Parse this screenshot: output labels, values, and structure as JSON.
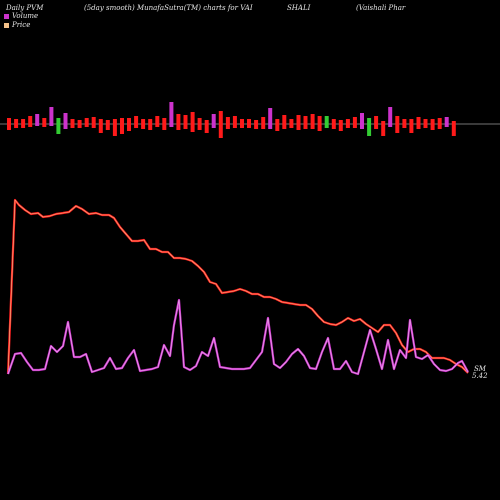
{
  "header": {
    "left": "Daily PVM",
    "center": "(5day smooth) MunafaSutra(TM) charts for VAI",
    "symbol": "SHALI",
    "right": "(Vaishali  Phar"
  },
  "legend": [
    {
      "label": "Volume",
      "color": "#cc33cc"
    },
    {
      "label": "Price",
      "color": "#f4c28a"
    }
  ],
  "chart_data": {
    "type": "line",
    "end_labels": [
      "SM",
      "5.42"
    ],
    "volume_bars": [
      {
        "up": 6,
        "down": 6,
        "color": "#ff1a1a"
      },
      {
        "up": 5,
        "down": 4,
        "color": "#ff1a1a"
      },
      {
        "up": 5,
        "down": 4,
        "color": "#ff1a1a"
      },
      {
        "up": 8,
        "down": 3,
        "color": "#ff1a1a"
      },
      {
        "up": 10,
        "down": 2,
        "color": "#cc33cc"
      },
      {
        "up": 6,
        "down": 3,
        "color": "#ff1a1a"
      },
      {
        "up": 17,
        "down": 2,
        "color": "#cc33cc"
      },
      {
        "up": 6,
        "down": 10,
        "color": "#33cc33"
      },
      {
        "up": 11,
        "down": 5,
        "color": "#cc33cc"
      },
      {
        "up": 5,
        "down": 4,
        "color": "#ff1a1a"
      },
      {
        "up": 4,
        "down": 4,
        "color": "#ff1a1a"
      },
      {
        "up": 6,
        "down": 3,
        "color": "#ff1a1a"
      },
      {
        "up": 7,
        "down": 4,
        "color": "#ff1a1a"
      },
      {
        "up": 5,
        "down": 9,
        "color": "#ff1a1a"
      },
      {
        "up": 4,
        "down": 6,
        "color": "#ff1a1a"
      },
      {
        "up": 5,
        "down": 12,
        "color": "#ff1a1a"
      },
      {
        "up": 6,
        "down": 10,
        "color": "#ff1a1a"
      },
      {
        "up": 6,
        "down": 7,
        "color": "#ff1a1a"
      },
      {
        "up": 8,
        "down": 4,
        "color": "#ff1a1a"
      },
      {
        "up": 5,
        "down": 5,
        "color": "#ff1a1a"
      },
      {
        "up": 5,
        "down": 6,
        "color": "#ff1a1a"
      },
      {
        "up": 8,
        "down": 3,
        "color": "#ff1a1a"
      },
      {
        "up": 6,
        "down": 6,
        "color": "#ff1a1a"
      },
      {
        "up": 22,
        "down": 3,
        "color": "#cc33cc"
      },
      {
        "up": 10,
        "down": 6,
        "color": "#ff1a1a"
      },
      {
        "up": 9,
        "down": 5,
        "color": "#ff1a1a"
      },
      {
        "up": 12,
        "down": 8,
        "color": "#ff1a1a"
      },
      {
        "up": 6,
        "down": 6,
        "color": "#ff1a1a"
      },
      {
        "up": 4,
        "down": 9,
        "color": "#ff1a1a"
      },
      {
        "up": 10,
        "down": 4,
        "color": "#cc33cc"
      },
      {
        "up": 13,
        "down": 14,
        "color": "#ff1a1a"
      },
      {
        "up": 7,
        "down": 5,
        "color": "#ff1a1a"
      },
      {
        "up": 8,
        "down": 4,
        "color": "#ff1a1a"
      },
      {
        "up": 5,
        "down": 4,
        "color": "#ff1a1a"
      },
      {
        "up": 5,
        "down": 4,
        "color": "#ff1a1a"
      },
      {
        "up": 4,
        "down": 5,
        "color": "#ff1a1a"
      },
      {
        "up": 7,
        "down": 5,
        "color": "#ff1a1a"
      },
      {
        "up": 16,
        "down": 5,
        "color": "#cc33cc"
      },
      {
        "up": 5,
        "down": 7,
        "color": "#ff1a1a"
      },
      {
        "up": 9,
        "down": 5,
        "color": "#ff1a1a"
      },
      {
        "up": 5,
        "down": 4,
        "color": "#ff1a1a"
      },
      {
        "up": 9,
        "down": 6,
        "color": "#ff1a1a"
      },
      {
        "up": 8,
        "down": 5,
        "color": "#ff1a1a"
      },
      {
        "up": 10,
        "down": 5,
        "color": "#ff1a1a"
      },
      {
        "up": 8,
        "down": 7,
        "color": "#ff1a1a"
      },
      {
        "up": 8,
        "down": 4,
        "color": "#33cc33"
      },
      {
        "up": 5,
        "down": 5,
        "color": "#ff1a1a"
      },
      {
        "up": 4,
        "down": 7,
        "color": "#ff1a1a"
      },
      {
        "up": 5,
        "down": 4,
        "color": "#ff1a1a"
      },
      {
        "up": 7,
        "down": 4,
        "color": "#ff1a1a"
      },
      {
        "up": 11,
        "down": 5,
        "color": "#cc33cc"
      },
      {
        "up": 6,
        "down": 12,
        "color": "#33cc33"
      },
      {
        "up": 8,
        "down": 5,
        "color": "#ff1a1a"
      },
      {
        "up": 3,
        "down": 12,
        "color": "#ff1a1a"
      },
      {
        "up": 17,
        "down": 3,
        "color": "#cc33cc"
      },
      {
        "up": 8,
        "down": 9,
        "color": "#ff1a1a"
      },
      {
        "up": 5,
        "down": 4,
        "color": "#ff1a1a"
      },
      {
        "up": 5,
        "down": 9,
        "color": "#ff1a1a"
      },
      {
        "up": 7,
        "down": 5,
        "color": "#ff1a1a"
      },
      {
        "up": 5,
        "down": 4,
        "color": "#ff1a1a"
      },
      {
        "up": 5,
        "down": 6,
        "color": "#ff1a1a"
      },
      {
        "up": 6,
        "down": 5,
        "color": "#ff1a1a"
      },
      {
        "up": 7,
        "down": 3,
        "color": "#cc33cc"
      },
      {
        "up": 3,
        "down": 12,
        "color": "#ff1a1a"
      }
    ],
    "price_line": [
      [
        8,
        374
      ],
      [
        15,
        200
      ],
      [
        19,
        205
      ],
      [
        25,
        210
      ],
      [
        31,
        214
      ],
      [
        38,
        213
      ],
      [
        43,
        217
      ],
      [
        50,
        216
      ],
      [
        56,
        214
      ],
      [
        63,
        213
      ],
      [
        69,
        212
      ],
      [
        76,
        206
      ],
      [
        82,
        209
      ],
      [
        89,
        214
      ],
      [
        96,
        213
      ],
      [
        102,
        215
      ],
      [
        109,
        215
      ],
      [
        114,
        218
      ],
      [
        120,
        227
      ],
      [
        126,
        234
      ],
      [
        132,
        241
      ],
      [
        138,
        241
      ],
      [
        144,
        240
      ],
      [
        150,
        249
      ],
      [
        156,
        249
      ],
      [
        162,
        252
      ],
      [
        168,
        252
      ],
      [
        174,
        258
      ],
      [
        180,
        258
      ],
      [
        186,
        259
      ],
      [
        192,
        261
      ],
      [
        198,
        266
      ],
      [
        204,
        272
      ],
      [
        210,
        282
      ],
      [
        216,
        284
      ],
      [
        222,
        293
      ],
      [
        228,
        292
      ],
      [
        234,
        291
      ],
      [
        240,
        289
      ],
      [
        246,
        291
      ],
      [
        252,
        294
      ],
      [
        258,
        294
      ],
      [
        264,
        297
      ],
      [
        270,
        297
      ],
      [
        276,
        299
      ],
      [
        282,
        302
      ],
      [
        288,
        303
      ],
      [
        294,
        304
      ],
      [
        300,
        305
      ],
      [
        306,
        305
      ],
      [
        312,
        309
      ],
      [
        318,
        316
      ],
      [
        324,
        322
      ],
      [
        330,
        324
      ],
      [
        336,
        325
      ],
      [
        342,
        322
      ],
      [
        348,
        318
      ],
      [
        354,
        321
      ],
      [
        360,
        319
      ],
      [
        366,
        324
      ],
      [
        372,
        328
      ],
      [
        378,
        332
      ],
      [
        384,
        325
      ],
      [
        390,
        325
      ],
      [
        396,
        333
      ],
      [
        402,
        345
      ],
      [
        408,
        352
      ],
      [
        414,
        349
      ],
      [
        420,
        349
      ],
      [
        426,
        352
      ],
      [
        432,
        358
      ],
      [
        438,
        358
      ],
      [
        444,
        358
      ],
      [
        450,
        360
      ],
      [
        456,
        364
      ],
      [
        462,
        367
      ],
      [
        468,
        373
      ]
    ],
    "volume_line": [
      [
        8,
        374
      ],
      [
        15,
        354
      ],
      [
        21,
        353
      ],
      [
        27,
        362
      ],
      [
        33,
        370
      ],
      [
        39,
        370
      ],
      [
        45,
        369
      ],
      [
        51,
        346
      ],
      [
        57,
        352
      ],
      [
        63,
        346
      ],
      [
        68,
        322
      ],
      [
        74,
        357
      ],
      [
        80,
        357
      ],
      [
        86,
        354
      ],
      [
        92,
        372
      ],
      [
        98,
        370
      ],
      [
        104,
        368
      ],
      [
        110,
        358
      ],
      [
        116,
        369
      ],
      [
        122,
        368
      ],
      [
        128,
        358
      ],
      [
        134,
        350
      ],
      [
        140,
        371
      ],
      [
        146,
        370
      ],
      [
        152,
        369
      ],
      [
        158,
        367
      ],
      [
        164,
        345
      ],
      [
        170,
        356
      ],
      [
        174,
        325
      ],
      [
        179,
        300
      ],
      [
        184,
        367
      ],
      [
        190,
        370
      ],
      [
        196,
        366
      ],
      [
        202,
        352
      ],
      [
        208,
        356
      ],
      [
        214,
        338
      ],
      [
        220,
        367
      ],
      [
        226,
        368
      ],
      [
        232,
        369
      ],
      [
        238,
        369
      ],
      [
        244,
        369
      ],
      [
        250,
        368
      ],
      [
        256,
        360
      ],
      [
        262,
        352
      ],
      [
        268,
        318
      ],
      [
        274,
        364
      ],
      [
        280,
        368
      ],
      [
        286,
        362
      ],
      [
        292,
        354
      ],
      [
        298,
        349
      ],
      [
        304,
        356
      ],
      [
        310,
        368
      ],
      [
        316,
        369
      ],
      [
        322,
        352
      ],
      [
        328,
        338
      ],
      [
        334,
        369
      ],
      [
        340,
        369
      ],
      [
        346,
        361
      ],
      [
        352,
        372
      ],
      [
        358,
        374
      ],
      [
        364,
        352
      ],
      [
        370,
        330
      ],
      [
        376,
        349
      ],
      [
        382,
        369
      ],
      [
        388,
        340
      ],
      [
        394,
        369
      ],
      [
        400,
        350
      ],
      [
        406,
        358
      ],
      [
        410,
        320
      ],
      [
        416,
        357
      ],
      [
        422,
        359
      ],
      [
        428,
        355
      ],
      [
        434,
        364
      ],
      [
        440,
        370
      ],
      [
        446,
        371
      ],
      [
        452,
        369
      ],
      [
        458,
        363
      ],
      [
        462,
        361
      ],
      [
        468,
        372
      ]
    ]
  }
}
